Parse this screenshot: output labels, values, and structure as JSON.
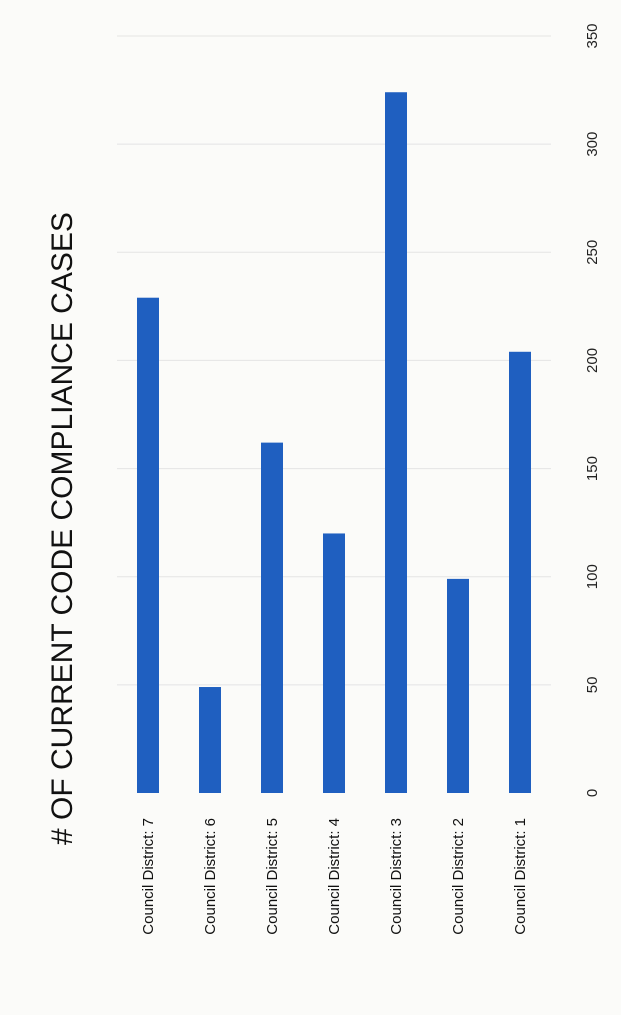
{
  "chart_data": {
    "type": "bar",
    "orientation": "horizontal",
    "title": "# OF CURRENT CODE COMPLIANCE CASES",
    "categories": [
      "Council District: 7",
      "Council District: 6",
      "Council District: 5",
      "Council District: 4",
      "Council District: 3",
      "Council District: 2",
      "Council District: 1"
    ],
    "values": [
      229,
      49,
      162,
      120,
      324,
      99,
      204
    ],
    "xlim": [
      0,
      350
    ],
    "ticks": [
      0,
      50,
      100,
      150,
      200,
      250,
      300,
      350
    ],
    "xlabel": "",
    "ylabel": "",
    "grid": true,
    "legend": "none",
    "bar_color": "#1f5fc0"
  }
}
